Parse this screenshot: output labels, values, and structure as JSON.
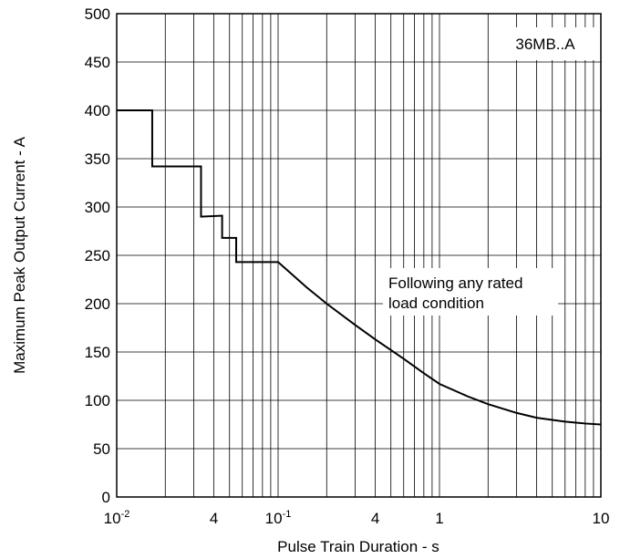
{
  "chart_data": {
    "type": "line",
    "title": "",
    "xlabel": "Pulse Train Duration - s",
    "ylabel": "Maximum Peak Output Current - A",
    "xscale": "log",
    "xlim": [
      0.01,
      10
    ],
    "ylim": [
      0,
      500
    ],
    "grid": true,
    "x_tick_labels": [
      {
        "value": 0.01,
        "label": "10",
        "sup": "-2"
      },
      {
        "value": 0.04,
        "label": "4",
        "sup": ""
      },
      {
        "value": 0.1,
        "label": "10",
        "sup": "-1"
      },
      {
        "value": 0.4,
        "label": "4",
        "sup": ""
      },
      {
        "value": 1,
        "label": "1",
        "sup": ""
      },
      {
        "value": 10,
        "label": "10",
        "sup": ""
      }
    ],
    "y_ticks": [
      0,
      50,
      100,
      150,
      200,
      250,
      300,
      350,
      400,
      450,
      500
    ],
    "y_tick_labels": [
      "0",
      "50",
      "100",
      "150",
      "200",
      "250",
      "300",
      "350",
      "400",
      "450",
      "500"
    ],
    "series": [
      {
        "x": [
          0.01,
          0.0166,
          0.0166,
          0.0333,
          0.0333,
          0.045,
          0.045,
          0.055,
          0.055,
          0.08,
          0.08,
          0.1,
          0.15,
          0.2,
          0.3,
          0.4,
          0.6,
          0.8,
          1,
          1.5,
          2,
          3,
          4,
          6,
          8,
          10
        ],
        "y": [
          400,
          400,
          342,
          342,
          290,
          291,
          268,
          268,
          243,
          243,
          243,
          243,
          217,
          200,
          178,
          163,
          143,
          128,
          117,
          104,
          96,
          87,
          82,
          78,
          76,
          75
        ]
      }
    ],
    "annotations": [
      {
        "text": "36MB..A"
      },
      {
        "lines": [
          "Following any rated",
          "load condition"
        ]
      }
    ]
  }
}
